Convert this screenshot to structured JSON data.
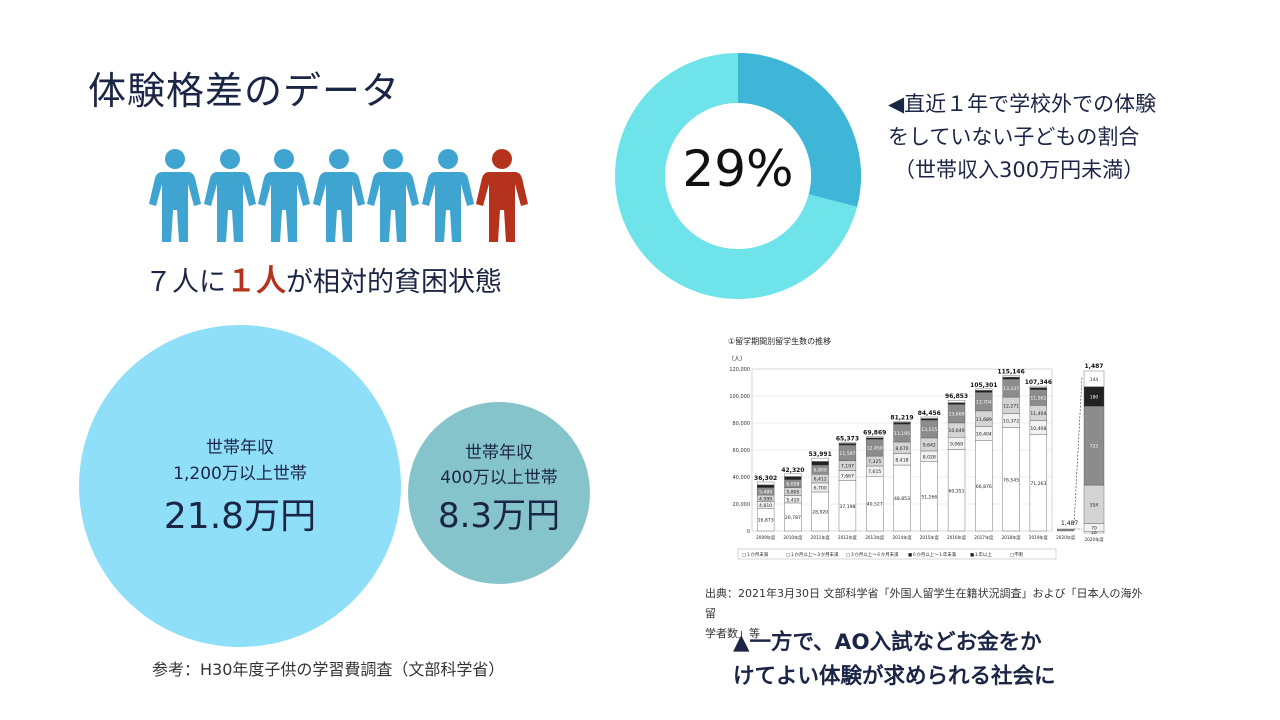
{
  "title": "体験格差のデータ",
  "people": {
    "total": 7,
    "highlight_index": 6,
    "colors": {
      "normal": "#3fa4cf",
      "highlight": "#b5321c"
    },
    "icon": "person-icon"
  },
  "caption_people": {
    "prefix": "７人に",
    "highlight": "１人",
    "suffix": "が相対的貧困状態"
  },
  "donut": {
    "value_label": "29%",
    "percent": 29,
    "colors": {
      "ring": "#6ee3ea",
      "segment": "#3fb6d8"
    },
    "desc_lines": [
      "◀直近１年で学校外での体験",
      "をしていない子どもの割合",
      "（世帯収入300万円未満）"
    ]
  },
  "bubbles": {
    "big": {
      "line1": "世帯年収",
      "line2": "1,200万以上世帯",
      "amount": "21.8万円"
    },
    "small": {
      "line1": "世帯年収",
      "line2": "400万以上世帯",
      "amount": "8.3万円"
    }
  },
  "source_left": "参考：H30年度子供の学習費調査（文部科学省）",
  "chart_data": {
    "type": "bar",
    "title": "①留学期間別留学生数の推移",
    "ylabel": "（人）",
    "ylim": [
      0,
      120000
    ],
    "yticks": [
      "0",
      "20,000",
      "40,000",
      "60,000",
      "80,000",
      "100,000",
      "120,000"
    ],
    "categories": [
      "2009年度",
      "2010年度",
      "2011年度",
      "2012年度",
      "2013年度",
      "2014年度",
      "2015年度",
      "2016年度",
      "2017年度",
      "2018年度",
      "2019年度",
      "2020年度"
    ],
    "totals": [
      36302,
      42320,
      53991,
      65373,
      69869,
      81219,
      84456,
      96853,
      105301,
      115146,
      107346,
      1487
    ],
    "total_labels": [
      "36,302",
      "42,320",
      "53,991",
      "65,373",
      "69,869",
      "81,219",
      "84,456",
      "96,853",
      "105,301",
      "115,146",
      "107,346",
      "1,487"
    ],
    "series": [
      {
        "name": "１か月未満",
        "color": "#ffffff",
        "values": [
          16873,
          20787,
          28920,
          37198,
          40527,
          48853,
          51266,
          60351,
          66876,
          76545,
          71263,
          16
        ]
      },
      {
        "name": "１か月以上～３か月未満",
        "color": "#f1f1f1",
        "values": [
          4810,
          5420,
          6700,
          7667,
          7615,
          8418,
          8028,
          9069,
          10404,
          10372,
          10408,
          70
        ]
      },
      {
        "name": "３か月以上～６か月未満",
        "color": "#d4d4d4",
        "values": [
          4999,
          5805,
          6412,
          7197,
          7325,
          8670,
          9642,
          10649,
          11689,
          12271,
          11404,
          354
        ]
      },
      {
        "name": "６か月以上～１年未満",
        "color": "#8c8c8c",
        "values": [
          5489,
          6058,
          6809,
          11597,
          12450,
          13195,
          13115,
          13669,
          13704,
          13237,
          11562,
          723
        ]
      },
      {
        "name": "１年以上",
        "color": "#222222",
        "values": [
          2000,
          2300,
          2700,
          1200,
          1200,
          1300,
          1300,
          1400,
          1500,
          1600,
          1600,
          180
        ]
      },
      {
        "name": "不明",
        "color": "#ffffff",
        "values": [
          2131,
          1950,
          2450,
          514,
          752,
          783,
          1105,
          1715,
          1128,
          1121,
          1109,
          144
        ]
      }
    ],
    "segment_labels": [
      [
        "16,873",
        "4,810",
        "4,999",
        "5,489",
        "",
        ""
      ],
      [
        "20,787",
        "5,420",
        "5,805",
        "6,058",
        "",
        ""
      ],
      [
        "28,920",
        "6,700",
        "6,412",
        "6,809",
        "",
        ""
      ],
      [
        "37,198",
        "7,667",
        "7,197",
        "11,597",
        "",
        ""
      ],
      [
        "40,527",
        "7,615",
        "7,325",
        "12,450",
        "",
        ""
      ],
      [
        "48,853",
        "8,418",
        "8,670",
        "13,195",
        "",
        ""
      ],
      [
        "51,266",
        "8,028",
        "9,642",
        "13,115",
        "",
        ""
      ],
      [
        "60,351",
        "9,069",
        "10,649",
        "13,669",
        "",
        ""
      ],
      [
        "66,876",
        "10,404",
        "11,689",
        "13,704",
        "",
        ""
      ],
      [
        "76,545",
        "10,372",
        "12,271",
        "13,237",
        "",
        ""
      ],
      [
        "71,263",
        "10,408",
        "11,404",
        "11,562",
        "",
        ""
      ],
      [
        "16",
        "70",
        "354",
        "723",
        "180",
        "144"
      ]
    ],
    "inset": {
      "category": "2020年度",
      "total_label": "1,487"
    },
    "legend": [
      "□１か月未満",
      "□１か月以上～３か月未満",
      "□３か月以上～６か月未満",
      "■６か月以上～１年未満",
      "■１年以上",
      "□不明"
    ]
  },
  "source_right_lines": [
    "出典：2021年3月30日 文部科学省「外国人留学生在籍状況調査」および「日本人の海外留",
    "学者数」等"
  ],
  "bottom_text_lines": [
    "▲一方で、AO入試などお金をか",
    "けてよい体験が求められる社会に"
  ]
}
